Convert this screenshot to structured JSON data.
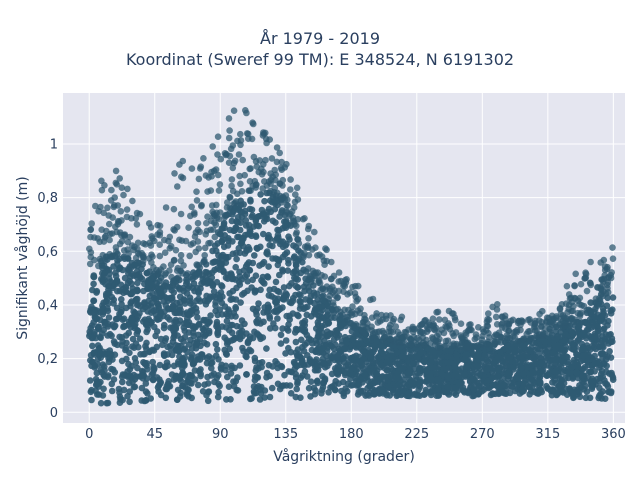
{
  "chart_data": {
    "type": "scatter",
    "title": "År 1979 - 2019",
    "subtitle": "Koordinat (Sweref 99 TM): E 348524, N 6191302",
    "xlabel": "Vågriktning (grader)",
    "ylabel": "Signifikant våghöjd (m)",
    "xlim": [
      -18,
      368
    ],
    "ylim": [
      -0.04,
      1.19
    ],
    "x_ticks": [
      0,
      45,
      90,
      135,
      180,
      225,
      270,
      315,
      360
    ],
    "x_tick_labels": [
      "0",
      "45",
      "90",
      "135",
      "180",
      "225",
      "270",
      "315",
      "360"
    ],
    "y_ticks": [
      0,
      0.2,
      0.4,
      0.6,
      0.8,
      1
    ],
    "y_tick_labels": [
      "0",
      "0,2",
      "0,4",
      "0,6",
      "0,8",
      "1"
    ],
    "grid": true,
    "marker_color": "#2f5a72",
    "background": "#e5e6f0",
    "envelope": {
      "x": [
        0,
        10,
        20,
        30,
        40,
        50,
        60,
        70,
        80,
        90,
        100,
        110,
        120,
        130,
        140,
        150,
        160,
        170,
        180,
        190,
        200,
        210,
        220,
        230,
        240,
        250,
        260,
        270,
        280,
        290,
        300,
        310,
        320,
        330,
        340,
        350,
        360
      ],
      "bulk_top": [
        0.52,
        0.56,
        0.6,
        0.58,
        0.55,
        0.5,
        0.5,
        0.52,
        0.55,
        0.7,
        0.78,
        0.82,
        0.83,
        0.8,
        0.7,
        0.52,
        0.44,
        0.38,
        0.33,
        0.29,
        0.27,
        0.26,
        0.25,
        0.25,
        0.24,
        0.24,
        0.24,
        0.25,
        0.26,
        0.26,
        0.27,
        0.28,
        0.3,
        0.33,
        0.37,
        0.42,
        0.45
      ],
      "bulk_bottom": [
        0.03,
        0.03,
        0.03,
        0.04,
        0.04,
        0.04,
        0.04,
        0.04,
        0.04,
        0.04,
        0.04,
        0.04,
        0.04,
        0.05,
        0.05,
        0.05,
        0.05,
        0.06,
        0.06,
        0.06,
        0.06,
        0.06,
        0.06,
        0.06,
        0.06,
        0.06,
        0.06,
        0.06,
        0.06,
        0.06,
        0.06,
        0.06,
        0.06,
        0.05,
        0.05,
        0.05,
        0.04
      ],
      "max": [
        0.72,
        0.9,
        0.92,
        0.8,
        0.72,
        0.82,
        0.95,
        0.92,
        0.96,
        1.08,
        1.14,
        1.12,
        1.05,
        1.0,
        0.9,
        0.72,
        0.63,
        0.57,
        0.5,
        0.45,
        0.4,
        0.38,
        0.33,
        0.35,
        0.38,
        0.38,
        0.33,
        0.34,
        0.43,
        0.35,
        0.34,
        0.38,
        0.36,
        0.5,
        0.56,
        0.58,
        0.62
      ]
    }
  }
}
